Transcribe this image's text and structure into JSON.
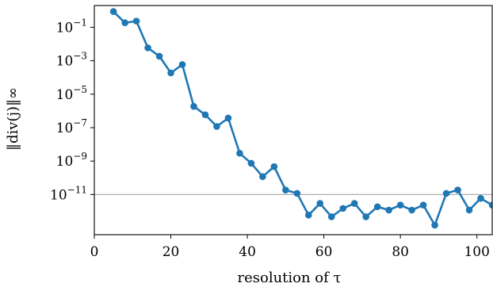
{
  "chart_data": {
    "type": "line",
    "xlabel": "resolution of τ",
    "ylabel": "‖div(j)‖∞",
    "xlim": [
      0,
      104
    ],
    "ylim_log10": [
      -13.4,
      0.3
    ],
    "yscale": "log",
    "grid": false,
    "line_color": "#1f77b4",
    "reference_line": {
      "y": 1e-11,
      "color": "#b0b0b0"
    },
    "xticks": [
      0,
      20,
      40,
      60,
      80,
      100
    ],
    "xtick_labels": [
      "0",
      "20",
      "40",
      "60",
      "80",
      "100"
    ],
    "yticks_exponent": [
      -1,
      -3,
      -5,
      -7,
      -9,
      -11
    ],
    "ytick_base": "10",
    "ytick_exponent_labels": [
      "−1",
      "−3",
      "−5",
      "−7",
      "−9",
      "−11"
    ],
    "series": [
      {
        "x": [
          5,
          8,
          11,
          14,
          17,
          20,
          23,
          26,
          29,
          32,
          35,
          38,
          41,
          44,
          47,
          50,
          53,
          56,
          59,
          62,
          65,
          68,
          71,
          74,
          77,
          80,
          83,
          86,
          89,
          92,
          95,
          98,
          101,
          104
        ],
        "log10_y": [
          -0.06,
          -0.73,
          -0.63,
          -2.23,
          -2.73,
          -3.73,
          -3.23,
          -5.73,
          -6.23,
          -6.93,
          -6.43,
          -8.53,
          -9.13,
          -9.93,
          -9.33,
          -10.73,
          -10.93,
          -12.23,
          -11.53,
          -12.33,
          -11.83,
          -11.53,
          -12.33,
          -11.73,
          -11.93,
          -11.63,
          -11.93,
          -11.63,
          -12.83,
          -10.93,
          -10.73,
          -11.93,
          -11.23,
          -11.63
        ]
      }
    ]
  }
}
